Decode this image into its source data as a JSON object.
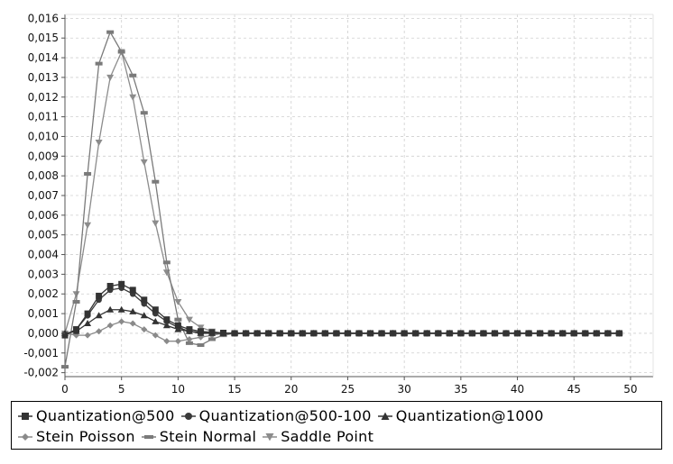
{
  "chart_data": {
    "type": "line",
    "title": "",
    "xlabel": "",
    "ylabel": "",
    "xlim": [
      0,
      52
    ],
    "ylim": [
      -0.0022,
      0.0162
    ],
    "x_ticks": [
      0,
      5,
      10,
      15,
      20,
      25,
      30,
      35,
      40,
      45,
      50
    ],
    "x_tick_labels": [
      "0",
      "5",
      "10",
      "15",
      "20",
      "25",
      "30",
      "35",
      "40",
      "45",
      "50"
    ],
    "y_ticks": [
      -0.002,
      -0.001,
      0,
      0.001,
      0.002,
      0.003,
      0.004,
      0.005,
      0.006,
      0.007,
      0.008,
      0.009,
      0.01,
      0.011,
      0.012,
      0.013,
      0.014,
      0.015,
      0.016
    ],
    "y_tick_labels": [
      "-0,002",
      "-0,001",
      "0,000",
      "0,001",
      "0,002",
      "0,003",
      "0,004",
      "0,005",
      "0,006",
      "0,007",
      "0,008",
      "0,009",
      "0,010",
      "0,011",
      "0,012",
      "0,013",
      "0,014",
      "0,015",
      "0,016"
    ],
    "grid": true,
    "legend_position": "bottom",
    "x": [
      0,
      1,
      2,
      3,
      4,
      5,
      6,
      7,
      8,
      9,
      10,
      11,
      12,
      13,
      14,
      15,
      16,
      17,
      18,
      19,
      20,
      21,
      22,
      23,
      24,
      25,
      26,
      27,
      28,
      29,
      30,
      31,
      32,
      33,
      34,
      35,
      36,
      37,
      38,
      39,
      40,
      41,
      42,
      43,
      44,
      45,
      46,
      47,
      48,
      49
    ],
    "series": [
      {
        "name": "Quantization@500",
        "marker": "square",
        "color": "#333333",
        "values": [
          -0.0001,
          0.0002,
          0.001,
          0.0019,
          0.0024,
          0.0025,
          0.0022,
          0.0017,
          0.0012,
          0.0007,
          0.0004,
          0.0002,
          0.0001,
          5e-05,
          2e-05,
          0,
          0,
          0,
          0,
          0,
          0,
          0,
          0,
          0,
          0,
          0,
          0,
          0,
          0,
          0,
          0,
          0,
          0,
          0,
          0,
          0,
          0,
          0,
          0,
          0,
          0,
          0,
          0,
          0,
          0,
          0,
          0,
          0,
          0,
          0
        ]
      },
      {
        "name": "Quantization@500-100",
        "marker": "circle",
        "color": "#3a3a3a",
        "values": [
          -0.0001,
          0.0002,
          0.0009,
          0.0017,
          0.0022,
          0.0023,
          0.002,
          0.0015,
          0.001,
          0.0006,
          0.0003,
          0.0001,
          5e-05,
          2e-05,
          0,
          0,
          0,
          0,
          0,
          0,
          0,
          0,
          0,
          0,
          0,
          0,
          0,
          0,
          0,
          0,
          0,
          0,
          0,
          0,
          0,
          0,
          0,
          0,
          0,
          0,
          0,
          0,
          0,
          0,
          0,
          0,
          0,
          0,
          0,
          0
        ]
      },
      {
        "name": "Quantization@1000",
        "marker": "triangle",
        "color": "#333333",
        "values": [
          0,
          0.0001,
          0.0005,
          0.0009,
          0.0012,
          0.0012,
          0.0011,
          0.0009,
          0.0006,
          0.0004,
          0.0002,
          0.0001,
          0,
          0,
          0,
          0,
          0,
          0,
          0,
          0,
          0,
          0,
          0,
          0,
          0,
          0,
          0,
          0,
          0,
          0,
          0,
          0,
          0,
          0,
          0,
          0,
          0,
          0,
          0,
          0,
          0,
          0,
          0,
          0,
          0,
          0,
          0,
          0,
          0,
          0
        ]
      },
      {
        "name": "Stein Poisson",
        "marker": "diamond",
        "color": "#8a8a8a",
        "values": [
          0,
          -0.0001,
          -0.0001,
          0.0001,
          0.0004,
          0.0006,
          0.0005,
          0.0002,
          -0.0001,
          -0.0004,
          -0.0004,
          -0.0003,
          -0.0002,
          -0.0001,
          0,
          0,
          0,
          0,
          0,
          0,
          0,
          0,
          0,
          0,
          0,
          0,
          0,
          0,
          0,
          0,
          0,
          0,
          0,
          0,
          0,
          0,
          0,
          0,
          0,
          0,
          0,
          0,
          0,
          0,
          0,
          0,
          0,
          0,
          0,
          0
        ]
      },
      {
        "name": "Stein Normal",
        "marker": "dash",
        "color": "#7a7a7a",
        "values": [
          -0.0017,
          0.0016,
          0.0081,
          0.0137,
          0.0153,
          0.0143,
          0.0131,
          0.0112,
          0.0077,
          0.0036,
          0.0007,
          -0.0005,
          -0.0006,
          -0.0003,
          -0.0001,
          0,
          0,
          0,
          0,
          0,
          0,
          0,
          0,
          0,
          0,
          0,
          0,
          0,
          0,
          0,
          0,
          0,
          0,
          0,
          0,
          0,
          0,
          0,
          0,
          0,
          0,
          0,
          0,
          0,
          0,
          0,
          0,
          0,
          0,
          0
        ]
      },
      {
        "name": "Saddle Point",
        "marker": "triangle-down",
        "color": "#8c8c8c",
        "values": [
          0,
          0.002,
          0.0055,
          0.0097,
          0.013,
          0.0143,
          0.012,
          0.0087,
          0.0056,
          0.0031,
          0.0016,
          0.0007,
          0.0003,
          0.0001,
          0,
          0,
          0,
          0,
          0,
          0,
          0,
          0,
          0,
          0,
          0,
          0,
          0,
          0,
          0,
          0,
          0,
          0,
          0,
          0,
          0,
          0,
          0,
          0,
          0,
          0,
          0,
          0,
          0,
          0,
          0,
          0,
          0,
          0,
          0,
          0
        ]
      }
    ]
  },
  "legend": {
    "row1": [
      "Quantization@500",
      "Quantization@500-100",
      "Quantization@1000"
    ],
    "row2": [
      "Stein Poisson",
      "Stein Normal",
      "Saddle Point"
    ]
  }
}
